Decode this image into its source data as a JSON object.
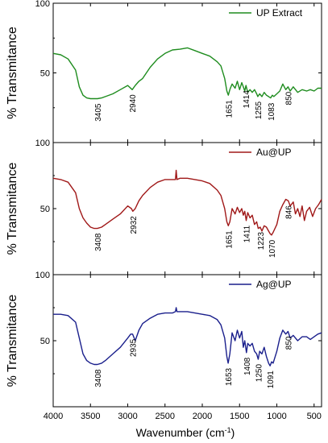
{
  "chart_data": [
    {
      "type": "line",
      "ylabel": "% Transmitance",
      "xlim": [
        4000,
        400
      ],
      "ylim": [
        0,
        100
      ],
      "yticks": [
        "50",
        "100"
      ],
      "legend": "top-right",
      "series": [
        {
          "name": "UP Extract",
          "color": "#1e8c1e",
          "x": [
            4000,
            3900,
            3800,
            3700,
            3650,
            3600,
            3550,
            3500,
            3450,
            3405,
            3350,
            3300,
            3200,
            3100,
            3000,
            2940,
            2900,
            2850,
            2800,
            2700,
            2600,
            2500,
            2400,
            2300,
            2200,
            2100,
            2000,
            1900,
            1800,
            1750,
            1700,
            1670,
            1651,
            1630,
            1600,
            1560,
            1530,
            1500,
            1470,
            1450,
            1430,
            1414,
            1390,
            1360,
            1330,
            1300,
            1270,
            1255,
            1230,
            1200,
            1170,
            1140,
            1110,
            1083,
            1060,
            1040,
            1000,
            960,
            920,
            880,
            850,
            820,
            780,
            720,
            660,
            600,
            550,
            500,
            450,
            400
          ],
          "y": [
            64,
            63,
            60,
            52,
            40,
            34,
            32,
            31.5,
            31.5,
            31.5,
            32,
            33,
            35,
            38,
            41,
            38,
            41,
            44,
            46,
            54,
            60,
            64,
            66.5,
            67,
            68,
            66,
            64,
            62,
            58,
            55,
            46,
            37,
            34,
            38,
            42,
            39,
            44,
            38,
            43,
            40,
            37,
            41,
            36,
            38,
            36,
            38,
            35,
            33,
            35,
            33,
            36,
            34,
            33,
            32,
            34,
            33,
            35,
            37,
            42,
            38,
            40,
            37,
            40,
            36,
            38,
            37,
            38,
            37,
            39,
            39
          ]
        },
        {
          "name": "Au@UP",
          "color": "#a01818",
          "x": [
            4000,
            3900,
            3800,
            3700,
            3650,
            3600,
            3550,
            3500,
            3450,
            3408,
            3350,
            3300,
            3200,
            3100,
            3000,
            2950,
            2932,
            2900,
            2850,
            2800,
            2700,
            2600,
            2500,
            2400,
            2360,
            2350,
            2340,
            2300,
            2200,
            2100,
            2000,
            1900,
            1800,
            1750,
            1700,
            1670,
            1651,
            1630,
            1600,
            1560,
            1530,
            1500,
            1470,
            1450,
            1430,
            1411,
            1390,
            1360,
            1330,
            1300,
            1270,
            1250,
            1223,
            1200,
            1170,
            1140,
            1110,
            1090,
            1070,
            1050,
            1000,
            960,
            920,
            880,
            846,
            820,
            780,
            750,
            720,
            690,
            660,
            630,
            600,
            560,
            520,
            480,
            440,
            400
          ],
          "y": [
            73,
            72,
            70,
            62,
            50,
            43,
            39,
            36,
            35,
            35,
            36,
            38,
            42,
            46,
            52,
            50,
            48,
            50,
            56,
            60,
            66,
            70,
            72,
            72,
            72,
            79,
            72,
            73,
            73,
            72,
            71,
            69,
            64,
            60,
            50,
            40,
            37,
            40,
            50,
            46,
            51,
            47,
            50,
            45,
            48,
            41,
            47,
            43,
            45,
            38,
            40,
            35,
            36,
            33,
            37,
            36,
            33,
            31,
            30,
            32,
            38,
            48,
            53,
            57,
            56,
            52,
            55,
            46,
            50,
            44,
            52,
            41,
            48,
            51,
            44,
            50,
            53,
            57
          ]
        },
        {
          "name": "Ag@UP",
          "color": "#1a1f8c",
          "x": [
            4000,
            3900,
            3800,
            3700,
            3650,
            3600,
            3550,
            3500,
            3450,
            3408,
            3350,
            3300,
            3200,
            3100,
            3000,
            2960,
            2935,
            2900,
            2850,
            2800,
            2700,
            2600,
            2500,
            2400,
            2360,
            2350,
            2340,
            2300,
            2200,
            2100,
            2000,
            1900,
            1800,
            1750,
            1700,
            1670,
            1653,
            1630,
            1600,
            1560,
            1530,
            1500,
            1470,
            1450,
            1430,
            1408,
            1390,
            1360,
            1330,
            1300,
            1270,
            1250,
            1230,
            1200,
            1170,
            1140,
            1110,
            1091,
            1070,
            1050,
            1000,
            960,
            920,
            880,
            850,
            820,
            780,
            720,
            660,
            600,
            550,
            500,
            450,
            400
          ],
          "y": [
            70,
            70,
            69,
            64,
            52,
            40,
            35,
            33,
            32,
            32,
            33,
            35,
            40,
            45,
            52,
            55,
            55,
            50,
            58,
            63,
            67,
            70,
            71,
            71,
            72,
            75,
            72,
            72,
            72,
            71,
            70,
            69,
            66,
            62,
            52,
            38,
            33,
            40,
            56,
            50,
            58,
            52,
            57,
            45,
            50,
            41,
            48,
            46,
            48,
            42,
            40,
            36,
            42,
            40,
            45,
            38,
            33,
            31,
            34,
            33,
            42,
            52,
            58,
            55,
            57,
            52,
            54,
            50,
            53,
            53,
            51,
            53,
            55,
            56
          ]
        }
      ]
    }
  ],
  "panels": [
    {
      "legend": "UP Extract",
      "color": "#1e8c1e",
      "peaks": [
        {
          "x": 3405,
          "label": "3405",
          "y": 31.5
        },
        {
          "x": 2940,
          "label": "2940",
          "y": 38
        },
        {
          "x": 1651,
          "label": "1651",
          "y": 34
        },
        {
          "x": 1414,
          "label": "1414",
          "y": 41
        },
        {
          "x": 1255,
          "label": "1255",
          "y": 33
        },
        {
          "x": 1083,
          "label": "1083",
          "y": 32
        },
        {
          "x": 850,
          "label": "850",
          "y": 40
        }
      ]
    },
    {
      "legend": "Au@UP",
      "color": "#a01818",
      "peaks": [
        {
          "x": 3408,
          "label": "3408",
          "y": 35
        },
        {
          "x": 2932,
          "label": "2932",
          "y": 48
        },
        {
          "x": 1651,
          "label": "1651",
          "y": 37
        },
        {
          "x": 1411,
          "label": "1411",
          "y": 41
        },
        {
          "x": 1223,
          "label": "1223",
          "y": 36
        },
        {
          "x": 1070,
          "label": "1070",
          "y": 30
        },
        {
          "x": 846,
          "label": "846",
          "y": 56
        }
      ]
    },
    {
      "legend": "Ag@UP",
      "color": "#1a1f8c",
      "peaks": [
        {
          "x": 3408,
          "label": "3408",
          "y": 32
        },
        {
          "x": 2935,
          "label": "2935",
          "y": 55
        },
        {
          "x": 1653,
          "label": "1653",
          "y": 33
        },
        {
          "x": 1408,
          "label": "1408",
          "y": 41
        },
        {
          "x": 1250,
          "label": "1250",
          "y": 36
        },
        {
          "x": 1091,
          "label": "1091",
          "y": 31
        },
        {
          "x": 850,
          "label": "850",
          "y": 57
        }
      ]
    }
  ],
  "xaxis": {
    "ticks": [
      4000,
      3500,
      3000,
      2500,
      2000,
      1500,
      1000,
      500
    ],
    "label_main": "Wavenumber (cm",
    "label_sup": "-1",
    "label_close": ")"
  },
  "ylabel": "% Transmitance"
}
